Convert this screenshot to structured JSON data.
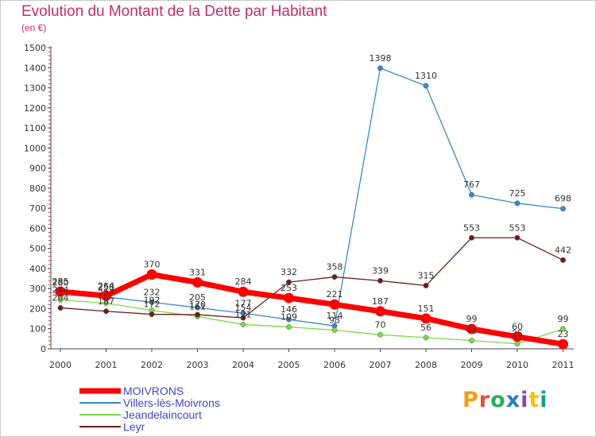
{
  "title": "Evolution du Montant de la Dette par Habitant",
  "unit_label": "(en €)",
  "logo": {
    "text": "Proxiti",
    "colors": [
      "#f39c12",
      "#e74c3c",
      "#27ae60",
      "#2980b9",
      "#8e44ad",
      "#f1c40f",
      "#16a085"
    ]
  },
  "chart_data": {
    "type": "line",
    "x": [
      "2000",
      "2001",
      "2002",
      "2003",
      "2004",
      "2005",
      "2006",
      "2007",
      "2008",
      "2009",
      "2010",
      "2011"
    ],
    "y_ticks": [
      "0",
      "100",
      "200",
      "300",
      "400",
      "500",
      "600",
      "700",
      "800",
      "900",
      "1000",
      "1100",
      "1200",
      "1300",
      "1400",
      "1500"
    ],
    "ylim": [
      0,
      1500
    ],
    "grid": false,
    "legend_position": "bottom-left",
    "series": [
      {
        "name": "MOIVRONS",
        "color": "#ff0000",
        "values": [
          285,
          264,
          370,
          331,
          284,
          253,
          221,
          187,
          151,
          99,
          60,
          23
        ],
        "labels": [
          "285",
          "264",
          "370",
          "331",
          "284",
          "253",
          "221",
          "187",
          "151",
          "99",
          "60",
          "23"
        ]
      },
      {
        "name": "Villers-lès-Moivrons",
        "color": "#3a88c8",
        "values": [
          280,
          258,
          232,
          205,
          177,
          146,
          114,
          1398,
          1310,
          767,
          725,
          698
        ],
        "labels": [
          "280",
          "258",
          "232",
          "205",
          "177",
          "146",
          "114",
          "1398",
          "1310",
          "767",
          "725",
          "698"
        ]
      },
      {
        "name": "Jeandelaincourt",
        "color": "#7fd84a",
        "values": [
          244,
          227,
          192,
          161,
          121,
          109,
          93,
          70,
          56,
          41,
          25,
          99
        ],
        "labels": [
          "244",
          "227",
          "192",
          "161",
          "121",
          "109",
          "93",
          "70",
          "56",
          "41",
          "25",
          "99"
        ]
      },
      {
        "name": "Leyr",
        "color": "#6b1d1d",
        "values": [
          204,
          187,
          172,
          170,
          154,
          332,
          358,
          339,
          315,
          553,
          553,
          442
        ],
        "labels": [
          "204",
          "187",
          "172",
          "170",
          "154",
          "332",
          "358",
          "339",
          "315",
          "553",
          "553",
          "442"
        ]
      }
    ]
  }
}
